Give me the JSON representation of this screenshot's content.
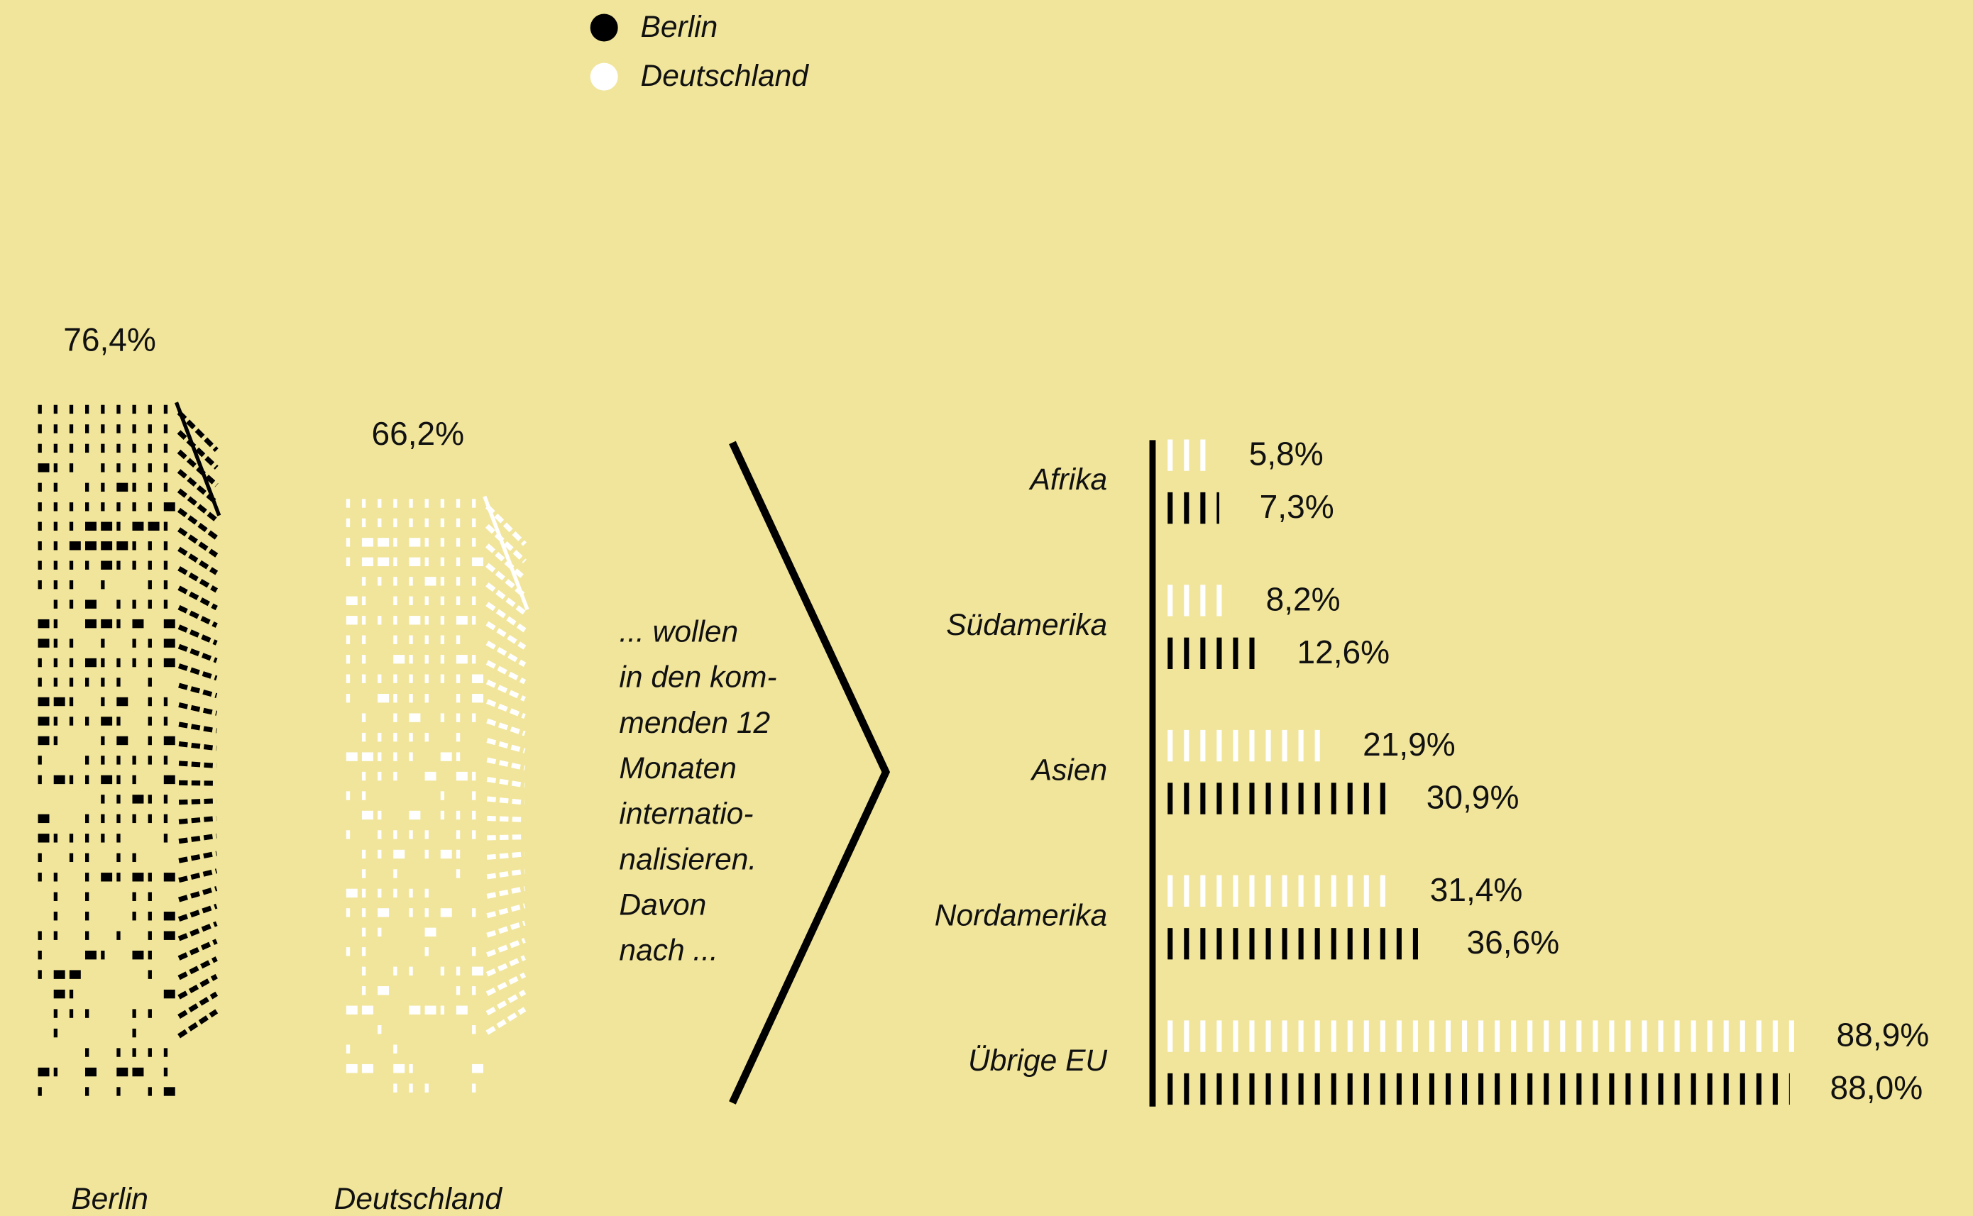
{
  "chart_data": [
    {
      "type": "building",
      "categories": [
        "Berlin",
        "Deutschland"
      ],
      "values": [
        76.4,
        66.2
      ],
      "value_labels": [
        "76,4%",
        "66,2%"
      ],
      "colors": [
        "#000000",
        "#ffffff"
      ]
    },
    {
      "type": "dashbar",
      "annotation": [
        "... wollen",
        "in den kom-",
        "menden 12",
        "Monaten",
        "internatio-",
        "nalisieren.",
        "Davon",
        "nach ..."
      ],
      "categories": [
        "Afrika",
        "Südamerika",
        "Asien",
        "Nordamerika",
        "Übrige EU"
      ],
      "series": [
        {
          "name": "Berlin",
          "color": "#000000",
          "values": [
            7.3,
            12.6,
            30.9,
            36.6,
            88.0
          ],
          "value_labels": [
            "7,3%",
            "12,6%",
            "30,9%",
            "36,6%",
            "88,0%"
          ]
        },
        {
          "name": "Deutschland",
          "color": "#ffffff",
          "values": [
            5.8,
            8.2,
            21.9,
            31.4,
            88.9
          ],
          "value_labels": [
            "5,8%",
            "8,2%",
            "21,9%",
            "31,4%",
            "88,9%"
          ]
        }
      ]
    }
  ]
}
